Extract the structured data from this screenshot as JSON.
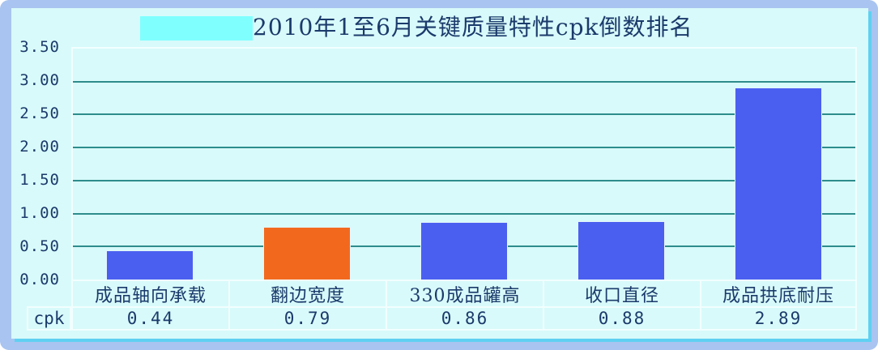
{
  "window": {
    "frame_color": "#A9C4F0",
    "panel_color": "#D8FAFA",
    "edge_accent_color": "#5FD0F2",
    "text_color": "#1B3A6B"
  },
  "title": {
    "text": "2010年1至6月关键质量特性cpk倒数排名",
    "highlight_box_color": "#80FFFF"
  },
  "chart_data": {
    "type": "bar",
    "title": "2010年1至6月关键质量特性cpk倒数排名",
    "categories": [
      "成品轴向承载",
      "翻边宽度",
      "330成品罐高",
      "收口直径",
      "成品拱底耐压"
    ],
    "series": [
      {
        "name": "cpk",
        "values": [
          0.44,
          0.79,
          0.86,
          0.88,
          2.89
        ]
      }
    ],
    "bar_colors": [
      "#4A5FF0",
      "#F2691E",
      "#4A5FF0",
      "#4A5FF0",
      "#4A5FF0"
    ],
    "xlabel": "",
    "ylabel": "",
    "ylim": [
      0,
      3.5
    ],
    "yticks": [
      0,
      0.5,
      1,
      1.5,
      2,
      2.5,
      3,
      3.5
    ],
    "ytick_labels": [
      "0.00",
      "0.50",
      "1.00",
      "1.50",
      "2.00",
      "2.50",
      "3.00",
      "3.50"
    ],
    "grid": true,
    "gridline_color": "#2E8C8C",
    "legend_position": "none",
    "data_table": {
      "row_label": "cpk",
      "values_display": [
        "0.44",
        "0.79",
        "0.86",
        "0.88",
        "2.89"
      ]
    }
  }
}
